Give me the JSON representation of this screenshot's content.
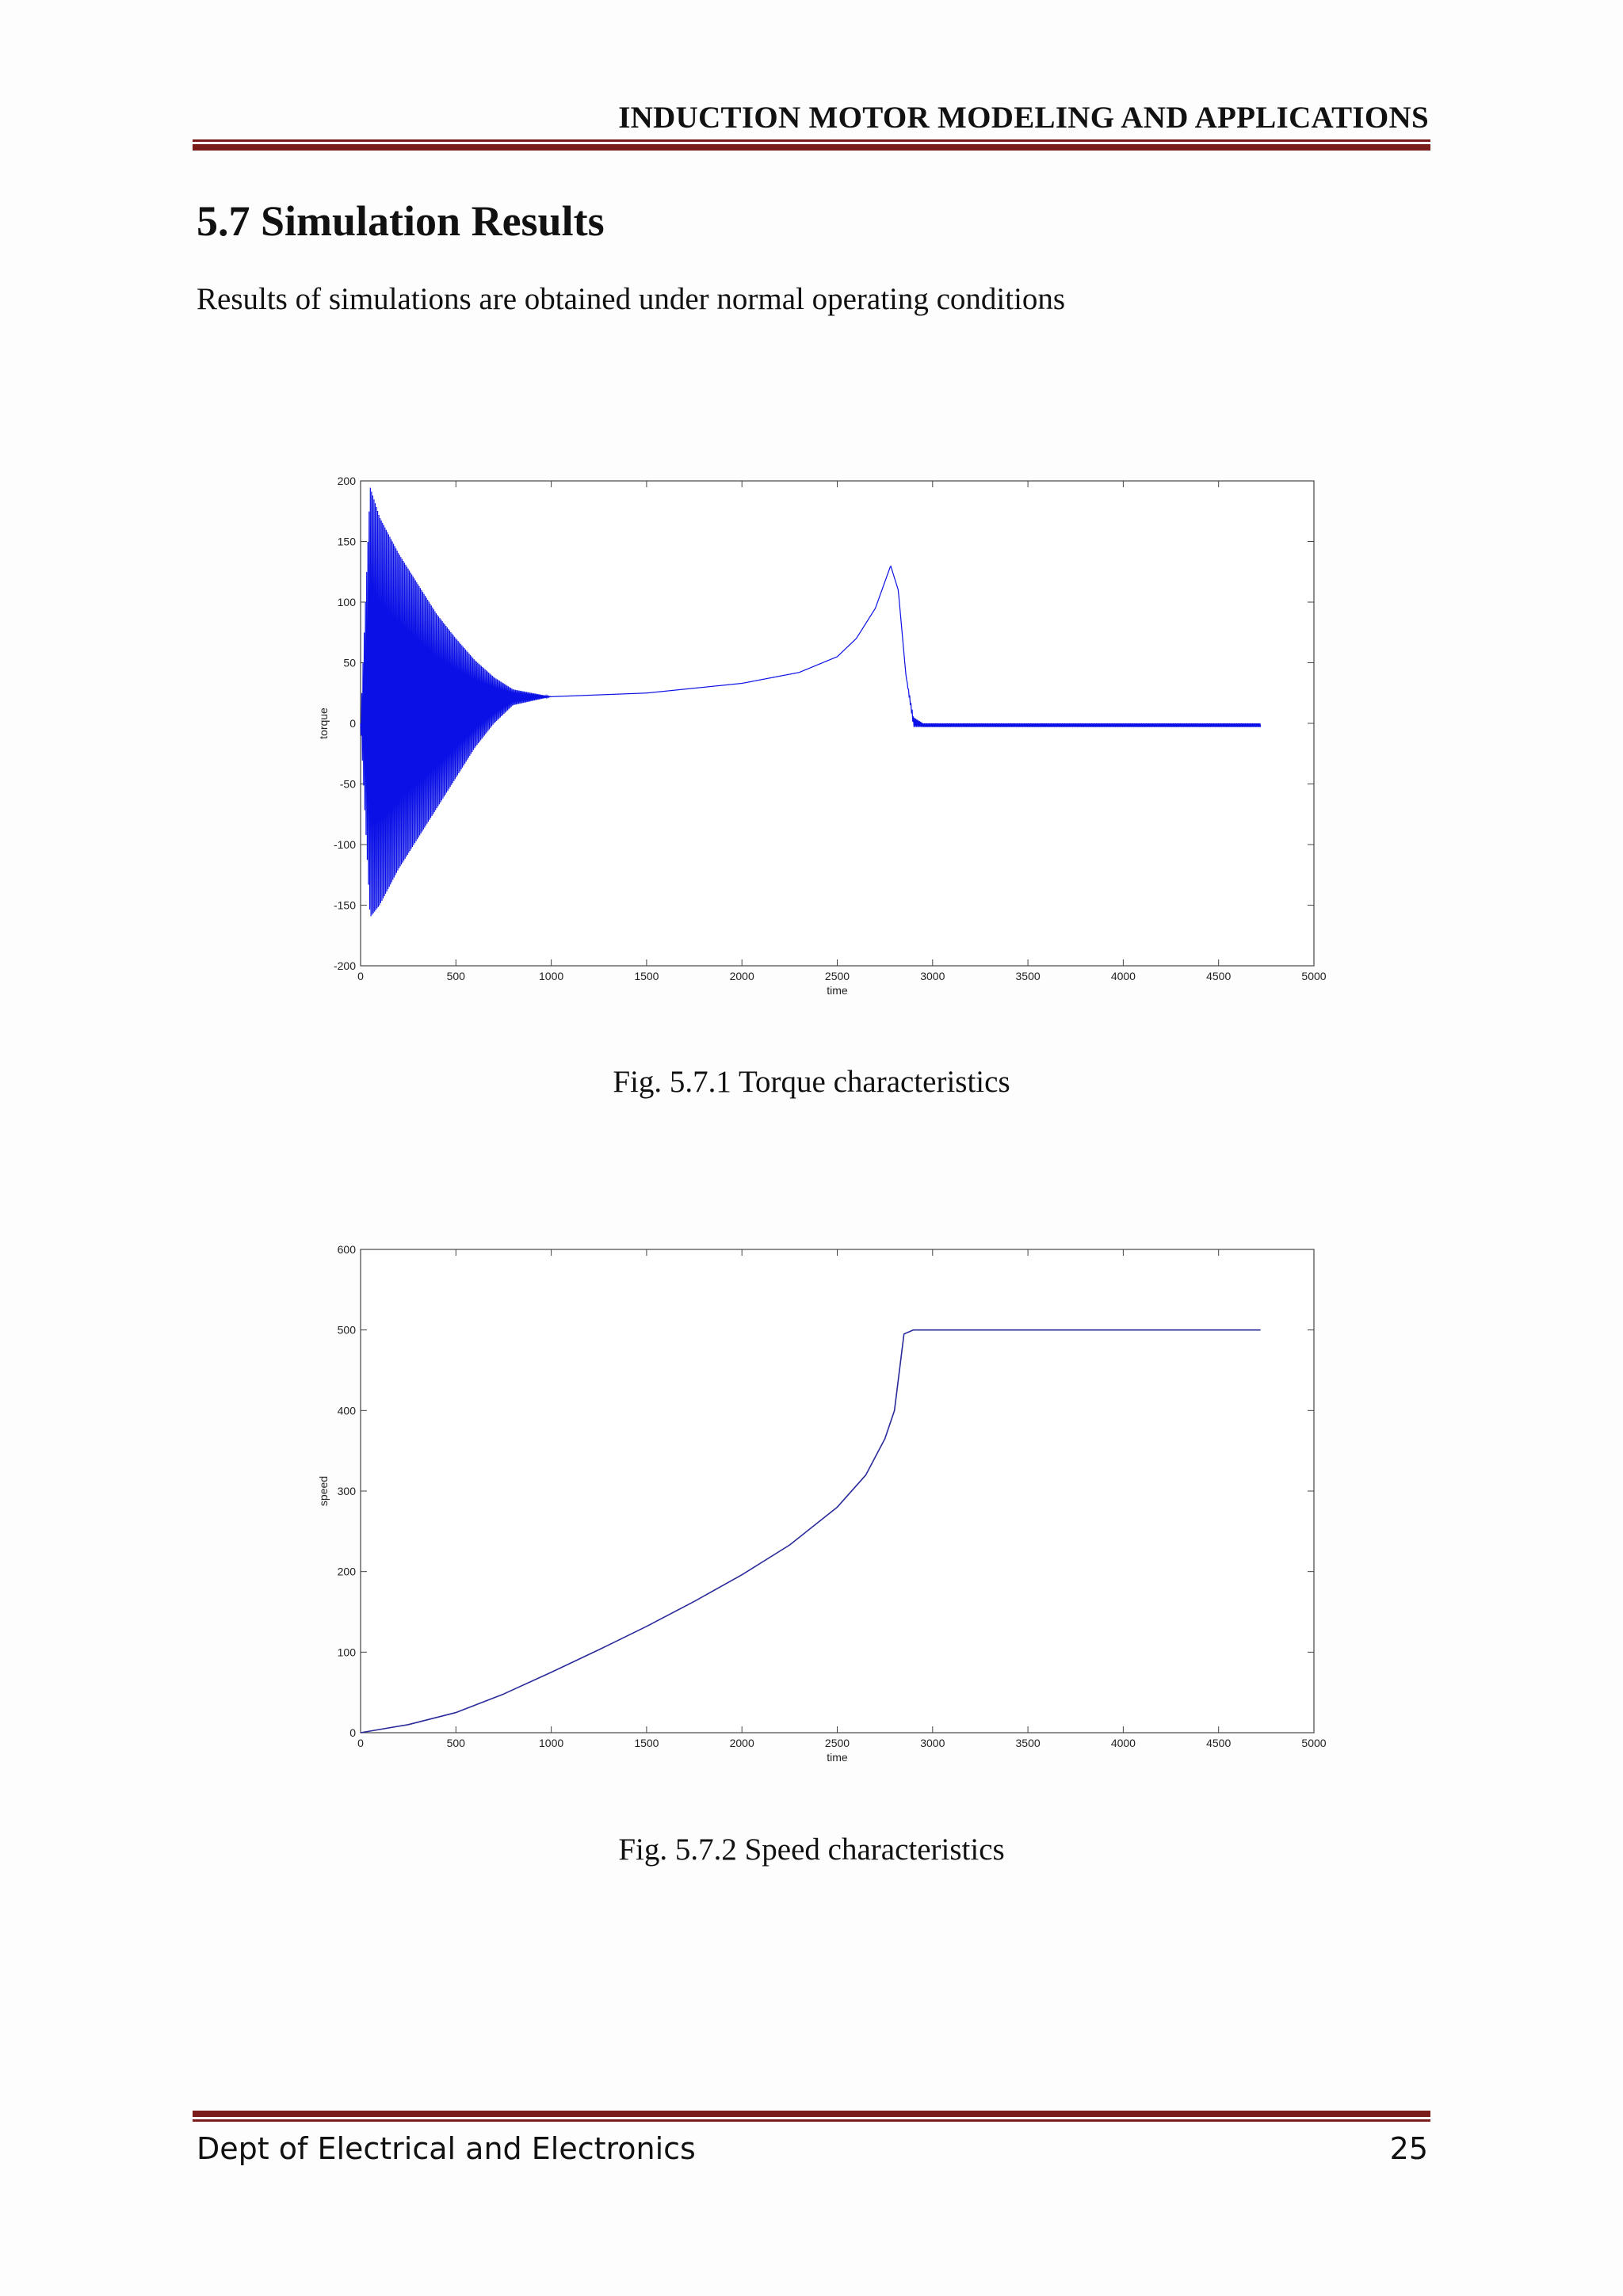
{
  "header": {
    "running_title": "INDUCTION MOTOR MODELING AND APPLICATIONS"
  },
  "section": {
    "title": "5.7 Simulation Results",
    "intro": "Results of simulations are obtained under normal operating conditions"
  },
  "figures": [
    {
      "caption": "Fig. 5.7.1 Torque characteristics"
    },
    {
      "caption": "Fig. 5.7.2 Speed characteristics"
    }
  ],
  "footer": {
    "department": "Dept of Electrical and Electronics",
    "page_number": "25"
  },
  "chart_data": [
    {
      "type": "line",
      "title": "",
      "xlabel": "time",
      "ylabel": "torque",
      "xlim": [
        0,
        5000
      ],
      "ylim": [
        -200,
        200
      ],
      "xticks": [
        "0",
        "500",
        "1000",
        "1500",
        "2000",
        "2500",
        "3000",
        "3500",
        "4000",
        "4500",
        "5000"
      ],
      "yticks": [
        "200",
        "150",
        "100",
        "50",
        "0",
        "-50",
        "-100",
        "-150",
        "-200"
      ],
      "grid": false,
      "color": "#0a10e6",
      "series": [
        {
          "x": [
            0,
            50,
            100,
            200,
            300,
            400,
            500,
            600,
            700,
            800,
            1000,
            1500,
            2000,
            2300,
            2500,
            2600,
            2700,
            2780,
            2820,
            2860,
            2900,
            2950,
            3000,
            3500,
            4000,
            4500,
            4720
          ],
          "y": [
            0,
            195,
            170,
            140,
            115,
            90,
            70,
            52,
            38,
            28,
            22,
            25,
            33,
            42,
            55,
            70,
            95,
            130,
            110,
            40,
            5,
            0,
            0,
            0,
            0,
            0,
            0
          ],
          "y_min": [
            0,
            -160,
            -150,
            -120,
            -95,
            -70,
            -45,
            -20,
            0,
            15,
            22,
            25,
            33,
            42,
            55,
            70,
            95,
            130,
            110,
            40,
            -3,
            -3,
            -3,
            -3,
            -3,
            -3,
            -3
          ]
        }
      ]
    },
    {
      "type": "line",
      "title": "",
      "xlabel": "time",
      "ylabel": "speed",
      "xlim": [
        0,
        5000
      ],
      "ylim": [
        0,
        600
      ],
      "xticks": [
        "0",
        "500",
        "1000",
        "1500",
        "2000",
        "2500",
        "3000",
        "3500",
        "4000",
        "4500",
        "5000"
      ],
      "yticks": [
        "600",
        "500",
        "400",
        "300",
        "200",
        "100",
        "0"
      ],
      "grid": false,
      "color": "#2a2a9a",
      "series": [
        {
          "x": [
            0,
            250,
            500,
            750,
            1000,
            1250,
            1500,
            1750,
            2000,
            2250,
            2500,
            2650,
            2750,
            2800,
            2850,
            2900,
            3000,
            3500,
            4000,
            4500,
            4720
          ],
          "y": [
            0,
            10,
            25,
            48,
            75,
            103,
            132,
            163,
            196,
            233,
            280,
            320,
            365,
            400,
            495,
            500,
            500,
            500,
            500,
            500,
            500
          ]
        }
      ]
    }
  ]
}
